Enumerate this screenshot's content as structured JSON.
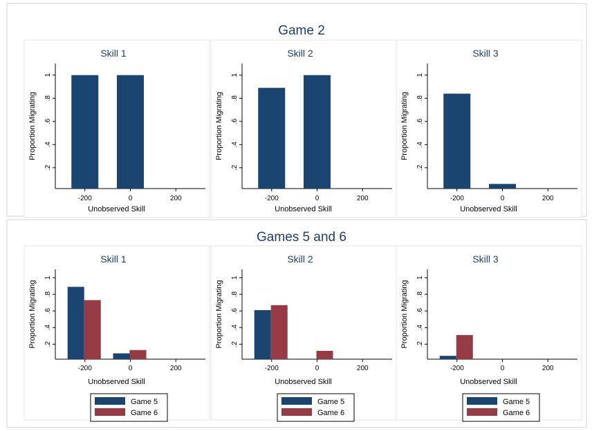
{
  "colors": {
    "game2": "#1b4571",
    "game5": "#1b4571",
    "game6": "#963a43",
    "panel_bg": "#ffffff",
    "panel_border": "#e6e6e6",
    "region_border": "#d3d3d3",
    "title": "#1f3d66"
  },
  "chart_data": [
    {
      "type": "bar",
      "group": "Game 2",
      "title": "Skill 1",
      "xlabel": "Unobserved Skill",
      "ylabel": "Proportion Migrating",
      "x": [
        -200,
        0
      ],
      "xticks": [
        -200,
        0,
        200
      ],
      "yticks": [
        ".2",
        ".4",
        ".6",
        ".8",
        "1"
      ],
      "xlim": [
        -330,
        330
      ],
      "ylim": [
        0.02,
        1.1
      ],
      "series": [
        {
          "values": [
            1.0,
            1.0
          ]
        }
      ]
    },
    {
      "type": "bar",
      "group": "Game 2",
      "title": "Skill 2",
      "xlabel": "Unobserved Skill",
      "ylabel": "Proportion Migrating",
      "x": [
        -200,
        0
      ],
      "xticks": [
        -200,
        0,
        200
      ],
      "yticks": [
        ".2",
        ".4",
        ".6",
        ".8",
        "1"
      ],
      "xlim": [
        -330,
        330
      ],
      "ylim": [
        0.02,
        1.1
      ],
      "series": [
        {
          "values": [
            0.89,
            1.0
          ]
        }
      ]
    },
    {
      "type": "bar",
      "group": "Game 2",
      "title": "Skill 3",
      "xlabel": "Unobserved Skill",
      "ylabel": "Proportion Migrating",
      "x": [
        -200,
        0
      ],
      "xticks": [
        -200,
        0,
        200
      ],
      "yticks": [
        ".2",
        ".4",
        ".6",
        ".8",
        "1"
      ],
      "xlim": [
        -330,
        330
      ],
      "ylim": [
        0.02,
        1.1
      ],
      "series": [
        {
          "values": [
            0.84,
            0.06
          ]
        }
      ]
    },
    {
      "type": "bar",
      "group": "Games 5 and 6",
      "title": "Skill 1",
      "xlabel": "Unobserved Skill",
      "ylabel": "Proportion Migrating",
      "x": [
        -200,
        0
      ],
      "xticks": [
        -200,
        0,
        200
      ],
      "yticks": [
        ".2",
        ".4",
        ".6",
        ".8",
        "1"
      ],
      "xlim": [
        -330,
        330
      ],
      "ylim": [
        0.02,
        1.1
      ],
      "series": [
        {
          "name": "Game 5",
          "values": [
            0.89,
            0.09
          ]
        },
        {
          "name": "Game 6",
          "values": [
            0.73,
            0.13
          ]
        }
      ],
      "legend": [
        "Game 5",
        "Game 6"
      ]
    },
    {
      "type": "bar",
      "group": "Games 5 and 6",
      "title": "Skill 2",
      "xlabel": "Unobserved Skill",
      "ylabel": "Proportion Migrating",
      "x": [
        -200,
        0
      ],
      "xticks": [
        -200,
        0,
        200
      ],
      "yticks": [
        ".2",
        ".4",
        ".6",
        ".8",
        "1"
      ],
      "xlim": [
        -330,
        330
      ],
      "ylim": [
        0.02,
        1.1
      ],
      "series": [
        {
          "name": "Game 5",
          "values": [
            0.61,
            0.0
          ]
        },
        {
          "name": "Game 6",
          "values": [
            0.67,
            0.12
          ]
        }
      ],
      "legend": [
        "Game 5",
        "Game 6"
      ]
    },
    {
      "type": "bar",
      "group": "Games 5 and 6",
      "title": "Skill 3",
      "xlabel": "Unobserved Skill",
      "ylabel": "Proportion Migrating",
      "x": [
        -200,
        0
      ],
      "xticks": [
        -200,
        0,
        200
      ],
      "yticks": [
        ".2",
        ".4",
        ".6",
        ".8",
        "1"
      ],
      "xlim": [
        -330,
        330
      ],
      "ylim": [
        0.02,
        1.1
      ],
      "series": [
        {
          "name": "Game 5",
          "values": [
            0.06,
            0.0
          ]
        },
        {
          "name": "Game 6",
          "values": [
            0.31,
            0.0
          ]
        }
      ],
      "legend": [
        "Game 5",
        "Game 6"
      ]
    }
  ],
  "groups": {
    "top_title": "Game 2",
    "bottom_title": "Games 5 and 6"
  }
}
